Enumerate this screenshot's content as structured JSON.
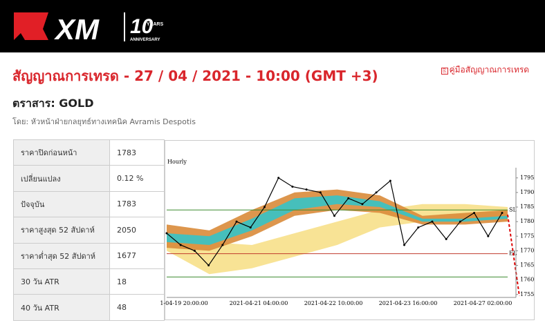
{
  "header": {
    "logo": "XM",
    "badge_number": "10",
    "badge_top": "YEARS",
    "badge_bottom": "ANNIVERSARY"
  },
  "title": "สัญญาณการเทรด - 27 / 04 / 2021 - 10:00 (GMT +3)",
  "guide_link": "คู่มือสัญญาณการเทรด",
  "instrument": "ตราสาร: GOLD",
  "byline": "โดย: หัวหน้าฝ่ายกลยุทธ์ทางเทคนิค Avramis Despotis",
  "table": {
    "rows": [
      [
        "ราคาปิดก่อนหน้า",
        "1783"
      ],
      [
        "เปลี่ยนแปลง",
        "0.12 %"
      ],
      [
        "ปัจจุบัน",
        "1783"
      ],
      [
        "ราคาสูงสุด 52 สัปดาห์",
        "2050"
      ],
      [
        "ราคาต่ำสุด 52 สัปดาห์",
        "1677"
      ],
      [
        "30 วัน ATR",
        "18"
      ],
      [
        "40 วัน ATR",
        "48"
      ]
    ]
  },
  "chart": {
    "type": "line",
    "label": "Hourly",
    "x_labels": [
      "1-04-19 20:00:00",
      "2021-04-21 04:00:00",
      "2021-04-22 10:00:00",
      "2021-04-23 16:00:00",
      "2021-04-27 02:00:00"
    ],
    "ylim": [
      1754,
      1798.5
    ],
    "yticks": [
      1755,
      1760,
      1765,
      1770,
      1775,
      1780,
      1785,
      1790,
      1795
    ],
    "price": {
      "color": "#000000",
      "values": [
        1776,
        1772,
        1770,
        1765,
        1772,
        1780,
        1778,
        1785,
        1795,
        1792,
        1791,
        1790,
        1782,
        1788,
        1786,
        1790,
        1794,
        1772,
        1778,
        1780,
        1774,
        1780,
        1783,
        1775,
        1783
      ]
    },
    "bands": [
      {
        "color": "#f7e08a",
        "upper": [
          1775,
          1773,
          1772,
          1776,
          1780,
          1784,
          1786,
          1786,
          1785
        ],
        "lower": [
          1770,
          1762,
          1764,
          1768,
          1772,
          1778,
          1780,
          1781,
          1782
        ]
      },
      {
        "color": "#d98b3a",
        "upper": [
          1779,
          1777,
          1784,
          1790,
          1791,
          1789,
          1782,
          1783,
          1784
        ],
        "lower": [
          1771,
          1770,
          1775,
          1782,
          1784,
          1783,
          1779,
          1779,
          1780
        ]
      },
      {
        "color": "#35c3c8",
        "upper": [
          1776,
          1775,
          1781,
          1788,
          1789,
          1787,
          1781,
          1781,
          1782
        ],
        "lower": [
          1773,
          1772,
          1777,
          1784,
          1786,
          1785,
          1780,
          1780,
          1781
        ]
      }
    ],
    "levels": [
      {
        "name": "SL",
        "value": 1784,
        "color": "#3c8a2e"
      },
      {
        "name": "EL",
        "value": 1769,
        "color": "#c0392b"
      },
      {
        "value": 1761,
        "color": "#3c8a2e"
      }
    ]
  }
}
